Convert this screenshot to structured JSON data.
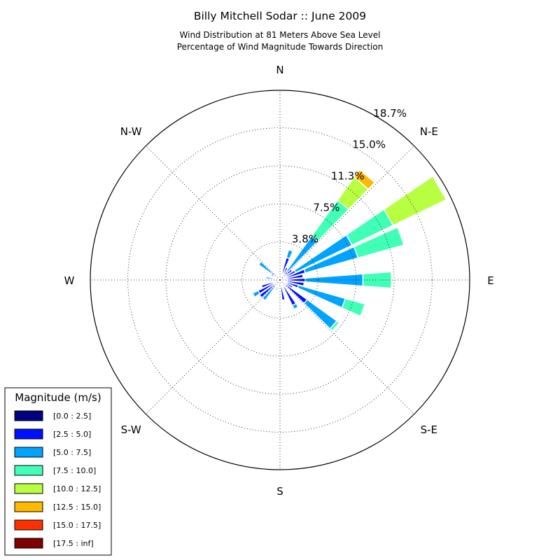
{
  "chart_data": {
    "type": "windrose",
    "title": "Billy Mitchell Sodar :: June 2009",
    "subtitle_lines": [
      "Wind Distribution at 81 Meters Above Sea Level",
      "Percentage of Wind Magnitude Towards Direction"
    ],
    "directions": [
      "N",
      "N-E",
      "E",
      "S-E",
      "S",
      "S-W",
      "W",
      "N-W"
    ],
    "radial_ticks": [
      "3.8%",
      "7.5%",
      "11.3%",
      "15.0%",
      "18.7%"
    ],
    "radial_tick_values": [
      3.75,
      7.5,
      11.25,
      15.0,
      18.7
    ],
    "rmax": 18.7,
    "legend_title": "Magnitude (m/s)",
    "bins": [
      {
        "label": "[0.0 : 2.5]",
        "color": "#00007f"
      },
      {
        "label": "[2.5 : 5.0]",
        "color": "#0010ff"
      },
      {
        "label": "[5.0 : 7.5]",
        "color": "#00a4ff"
      },
      {
        "label": "[7.5 : 10.0]",
        "color": "#40ffb7"
      },
      {
        "label": "[10.0 : 12.5]",
        "color": "#b7ff40"
      },
      {
        "label": "[12.5 : 15.0]",
        "color": "#ffb900"
      },
      {
        "label": "[15.0 : 17.5]",
        "color": "#ff3000"
      },
      {
        "label": "[17.5 : inf]",
        "color": "#7f0000"
      }
    ],
    "sectors": [
      {
        "angle": 0,
        "values": [
          0.0,
          0.1,
          0.0,
          0.0,
          0.0,
          0.0,
          0.0,
          0.0
        ]
      },
      {
        "angle": 10,
        "values": [
          0.2,
          0.2,
          0.0,
          0.0,
          0.0,
          0.0,
          0.0,
          0.0
        ]
      },
      {
        "angle": 20,
        "values": [
          0.3,
          2.0,
          0.8,
          0.0,
          0.0,
          0.0,
          0.0,
          0.0
        ]
      },
      {
        "angle": 30,
        "values": [
          0.4,
          1.0,
          0.0,
          0.0,
          0.0,
          0.0,
          0.0,
          0.0
        ]
      },
      {
        "angle": 40,
        "values": [
          0.3,
          0.8,
          4.2,
          4.4,
          2.8,
          0.9,
          0.0,
          0.0
        ]
      },
      {
        "angle": 50,
        "values": [
          0.3,
          1.2,
          0.0,
          0.0,
          0.0,
          0.0,
          0.0,
          0.0
        ]
      },
      {
        "angle": 60,
        "values": [
          0.3,
          1.4,
          6.2,
          4.5,
          5.8,
          0.0,
          0.0,
          0.0
        ]
      },
      {
        "angle": 70,
        "values": [
          0.4,
          2.2,
          5.4,
          4.7,
          0.0,
          0.0,
          0.0,
          0.0
        ]
      },
      {
        "angle": 80,
        "values": [
          0.3,
          2.0,
          0.0,
          0.0,
          0.0,
          0.0,
          0.0,
          0.0
        ]
      },
      {
        "angle": 90,
        "values": [
          0.3,
          2.2,
          5.7,
          2.8,
          0.0,
          0.0,
          0.0,
          0.0
        ]
      },
      {
        "angle": 100,
        "values": [
          0.3,
          2.1,
          0.0,
          0.0,
          0.0,
          0.0,
          0.0,
          0.0
        ]
      },
      {
        "angle": 110,
        "values": [
          0.3,
          1.6,
          4.8,
          2.0,
          0.0,
          0.0,
          0.0,
          0.0
        ]
      },
      {
        "angle": 120,
        "values": [
          0.3,
          1.1,
          0.0,
          0.0,
          0.0,
          0.0,
          0.0,
          0.0
        ]
      },
      {
        "angle": 130,
        "values": [
          0.3,
          3.0,
          3.6,
          0.3,
          0.0,
          0.0,
          0.0,
          0.0
        ]
      },
      {
        "angle": 140,
        "values": [
          0.3,
          0.3,
          0.0,
          0.0,
          0.0,
          0.0,
          0.0,
          0.0
        ]
      },
      {
        "angle": 150,
        "values": [
          0.3,
          2.5,
          0.4,
          0.0,
          0.0,
          0.0,
          0.0,
          0.0
        ]
      },
      {
        "angle": 160,
        "values": [
          0.4,
          0.3,
          0.0,
          0.0,
          0.0,
          0.0,
          0.0,
          0.0
        ]
      },
      {
        "angle": 170,
        "values": [
          0.3,
          1.7,
          0.0,
          0.0,
          0.0,
          0.0,
          0.0,
          0.0
        ]
      },
      {
        "angle": 180,
        "values": [
          0.2,
          0.3,
          0.0,
          0.0,
          0.0,
          0.0,
          0.0,
          0.0
        ]
      },
      {
        "angle": 190,
        "values": [
          0.2,
          0.3,
          0.0,
          0.0,
          0.0,
          0.0,
          0.0,
          0.0
        ]
      },
      {
        "angle": 200,
        "values": [
          0.2,
          0.5,
          0.4,
          0.0,
          0.0,
          0.0,
          0.0,
          0.0
        ]
      },
      {
        "angle": 210,
        "values": [
          0.2,
          0.4,
          0.0,
          0.0,
          0.0,
          0.0,
          0.0,
          0.0
        ]
      },
      {
        "angle": 220,
        "values": [
          0.2,
          0.5,
          1.8,
          0.0,
          0.0,
          0.0,
          0.0,
          0.0
        ]
      },
      {
        "angle": 230,
        "values": [
          0.3,
          2.2,
          0.0,
          0.0,
          0.0,
          0.0,
          0.0,
          0.0
        ]
      },
      {
        "angle": 240,
        "values": [
          0.2,
          2.2,
          0.6,
          0.0,
          0.0,
          0.0,
          0.0,
          0.0
        ]
      },
      {
        "angle": 250,
        "values": [
          0.3,
          1.6,
          0.0,
          0.0,
          0.0,
          0.0,
          0.0,
          0.0
        ]
      },
      {
        "angle": 260,
        "values": [
          0.2,
          0.2,
          0.0,
          0.0,
          0.0,
          0.0,
          0.0,
          0.0
        ]
      },
      {
        "angle": 270,
        "values": [
          0.1,
          0.1,
          0.0,
          0.0,
          0.0,
          0.0,
          0.0,
          0.0
        ]
      },
      {
        "angle": 280,
        "values": [
          0.2,
          0.3,
          0.9,
          0.0,
          0.0,
          0.0,
          0.0,
          0.0
        ]
      },
      {
        "angle": 290,
        "values": [
          0.2,
          0.2,
          0.0,
          0.0,
          0.0,
          0.0,
          0.0,
          0.0
        ]
      },
      {
        "angle": 300,
        "values": [
          0.6,
          0.4,
          0.0,
          0.0,
          0.0,
          0.0,
          0.0,
          0.0
        ]
      },
      {
        "angle": 310,
        "values": [
          0.3,
          0.8,
          1.5,
          0.0,
          0.0,
          0.0,
          0.0,
          0.0
        ]
      },
      {
        "angle": 320,
        "values": [
          0.1,
          0.1,
          0.0,
          0.0,
          0.0,
          0.0,
          0.0,
          0.0
        ]
      },
      {
        "angle": 330,
        "values": [
          0.1,
          0.1,
          0.0,
          0.0,
          0.0,
          0.0,
          0.0,
          0.0
        ]
      },
      {
        "angle": 340,
        "values": [
          0.1,
          0.0,
          0.0,
          0.0,
          0.0,
          0.0,
          0.0,
          0.0
        ]
      },
      {
        "angle": 350,
        "values": [
          0.1,
          0.3,
          0.0,
          0.0,
          0.0,
          0.0,
          0.0,
          0.0
        ]
      }
    ],
    "grid": true,
    "legend_position": "bottom-left"
  }
}
